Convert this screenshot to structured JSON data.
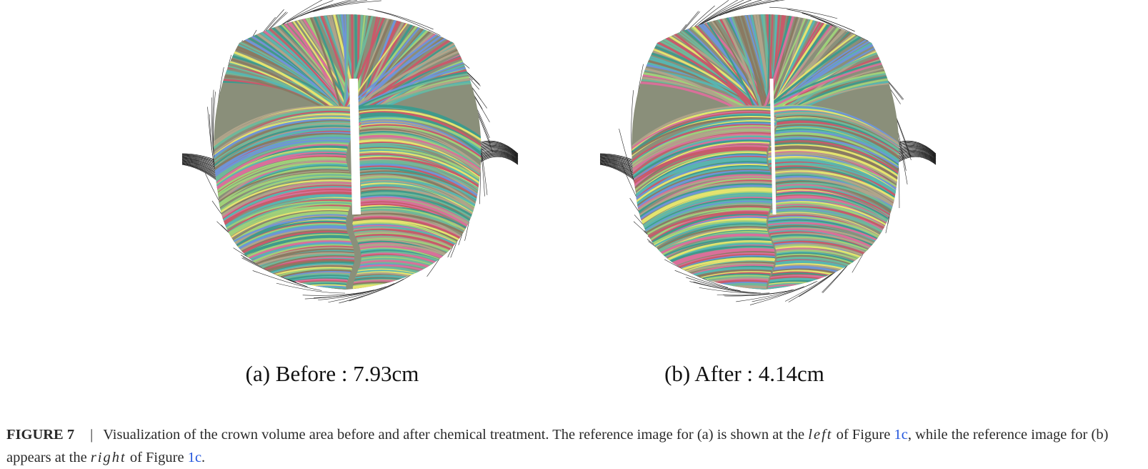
{
  "figure": {
    "panels": [
      {
        "label": "(a)  Before : 7.93cm",
        "image": "hair-crown-before"
      },
      {
        "label": "(b)  After : 4.14cm",
        "image": "hair-crown-after"
      }
    ],
    "caption": {
      "figure_label": "FIGURE 7",
      "separator": "|",
      "text_1": "Visualization of the crown volume area before and after chemical treatment. The reference image for (a) is shown at the ",
      "italic_1": "left",
      "text_2": " of Figure ",
      "link_1": "1c",
      "text_3": ", while the reference image for (b) appears at the ",
      "italic_2": "right",
      "text_4": " of Figure ",
      "link_2": "1c",
      "text_5": "."
    },
    "strand_colors": [
      "#6fb89a",
      "#e4e36f",
      "#8a7a62",
      "#d9709a",
      "#6f94d8",
      "#9fd07a",
      "#3f9a8c",
      "#c85a6a",
      "#b0a48a",
      "#59b5b0"
    ]
  }
}
